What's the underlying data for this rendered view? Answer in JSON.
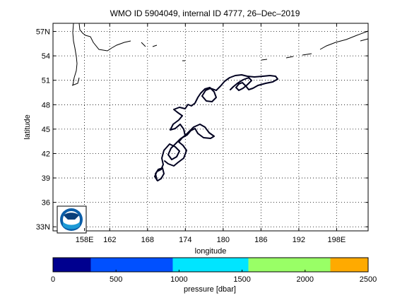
{
  "title": "WMO ID 5904049, internal ID 4777, 26–Dec–2019",
  "map": {
    "xlabel": "longitude",
    "ylabel": "latitude",
    "lon_range": [
      153,
      203
    ],
    "lat_range": [
      32.5,
      58
    ],
    "lon_ticks": [
      "158E",
      "162",
      "168",
      "174",
      "180",
      "186",
      "192",
      "198E"
    ],
    "lon_tick_values": [
      158,
      162,
      168,
      174,
      180,
      186,
      192,
      198
    ],
    "lat_ticks": [
      "33N",
      "36",
      "39",
      "42",
      "45",
      "48",
      "51",
      "54",
      "57N"
    ],
    "lat_tick_values": [
      33,
      36,
      39,
      42,
      45,
      48,
      51,
      54,
      57
    ],
    "grid": true,
    "grid_style": "dotted",
    "logo": "noaa-logo",
    "track_color": "#000020",
    "land_color": "#000000"
  },
  "colorbar": {
    "label": "pressure [dbar]",
    "ticks": [
      "0",
      "500",
      "1000",
      "1500",
      "2000",
      "2500"
    ],
    "tick_values": [
      0,
      500,
      1000,
      1500,
      2000,
      2500
    ],
    "bins": [
      {
        "from": 0,
        "to": 300,
        "color": "#00008f"
      },
      {
        "from": 300,
        "to": 950,
        "color": "#0050ff"
      },
      {
        "from": 950,
        "to": 1550,
        "color": "#00e5ff"
      },
      {
        "from": 1550,
        "to": 2200,
        "color": "#99ff66"
      },
      {
        "from": 2200,
        "to": 2500,
        "color": "#ffaa00"
      }
    ]
  }
}
